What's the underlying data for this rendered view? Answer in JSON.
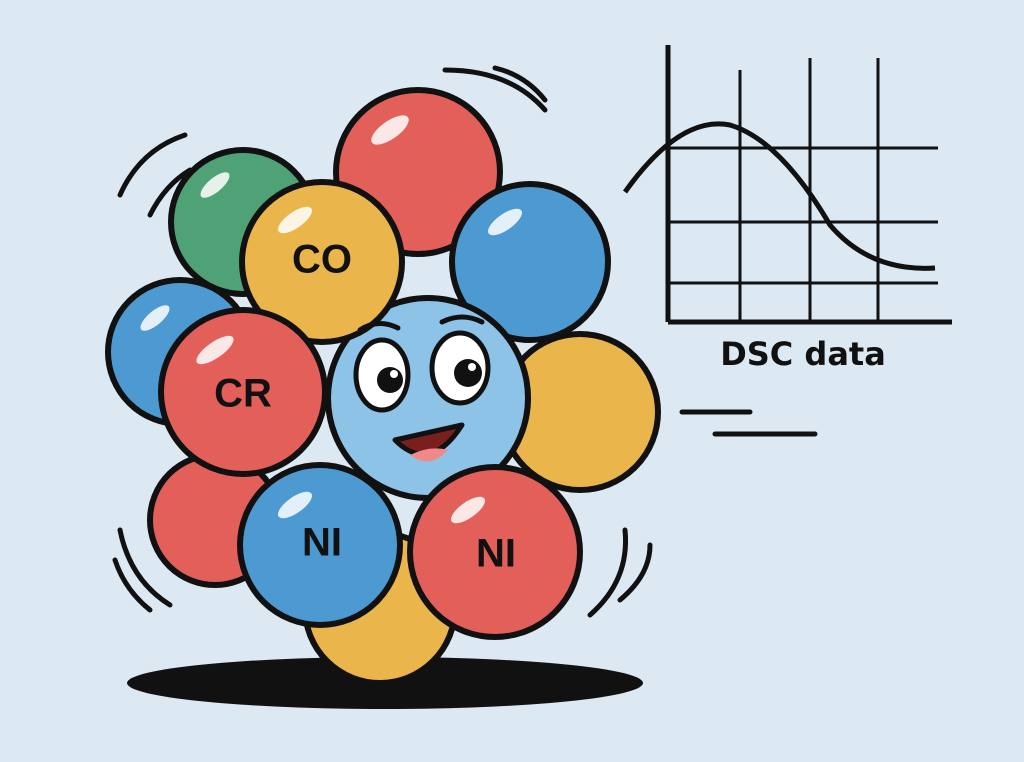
{
  "balls": [
    "CO",
    "CR",
    "NI",
    "NI"
  ],
  "graph": {
    "label": "DSC data"
  }
}
